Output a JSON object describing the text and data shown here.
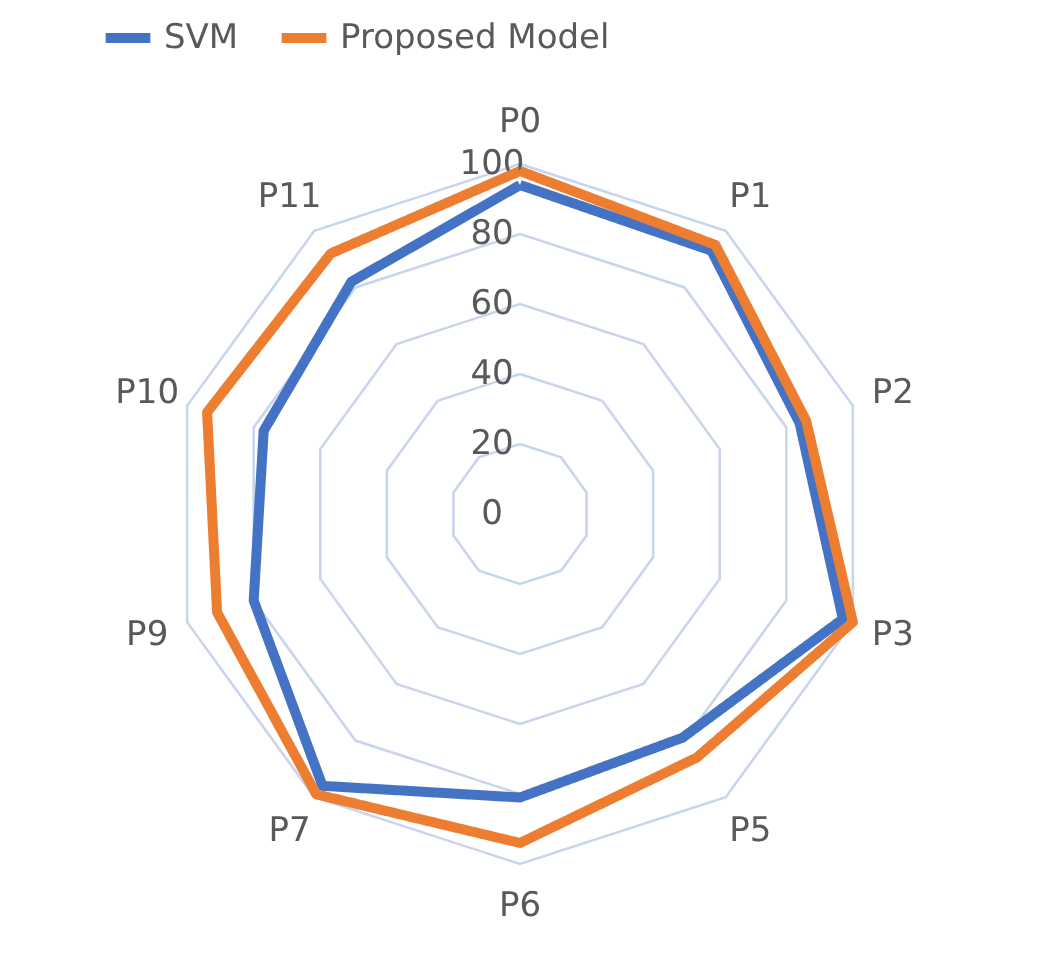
{
  "chart_data": {
    "type": "radar",
    "categories": [
      "P0",
      "P1",
      "P2",
      "P3",
      "P5",
      "P6",
      "P7",
      "P9",
      "P10",
      "P11"
    ],
    "series": [
      {
        "name": "SVM",
        "color": "#4472c4",
        "values": [
          94,
          93,
          84,
          97,
          79,
          81,
          96,
          80,
          77,
          82
        ]
      },
      {
        "name": "Proposed Model",
        "color": "#ed7d31",
        "values": [
          98,
          95,
          86,
          100,
          86,
          94,
          99,
          91,
          94,
          92
        ]
      }
    ],
    "ylim": [
      0,
      100
    ],
    "yticks": [
      0,
      20,
      40,
      60,
      80,
      100
    ],
    "grid": true,
    "legend": "top",
    "marker": "none",
    "line_style": "solid"
  }
}
